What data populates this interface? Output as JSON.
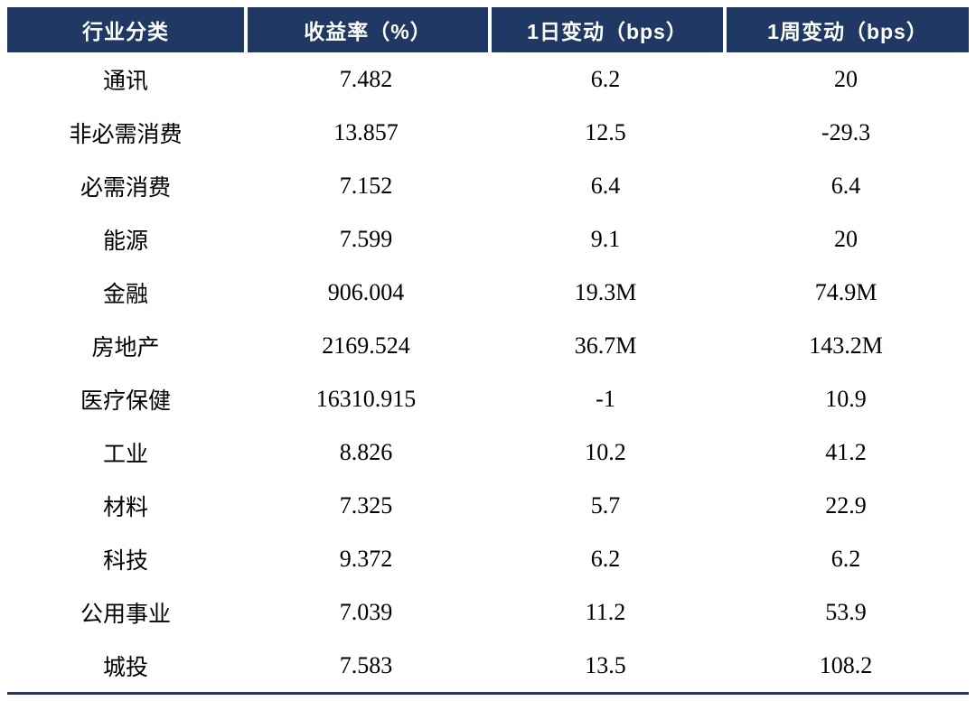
{
  "accent_color": "#1f3864",
  "text_color": "#000000",
  "background_color": "#ffffff",
  "chart_data": {
    "type": "table",
    "columns": [
      "行业分类",
      "收益率（%）",
      "1日变动（bps）",
      "1周变动（bps）"
    ],
    "rows": [
      [
        "通讯",
        "7.482",
        "6.2",
        "20"
      ],
      [
        "非必需消费",
        "13.857",
        "12.5",
        "-29.3"
      ],
      [
        "必需消费",
        "7.152",
        "6.4",
        "6.4"
      ],
      [
        "能源",
        "7.599",
        "9.1",
        "20"
      ],
      [
        "金融",
        "906.004",
        "19.3M",
        "74.9M"
      ],
      [
        "房地产",
        "2169.524",
        "36.7M",
        "143.2M"
      ],
      [
        "医疗保健",
        "16310.915",
        "-1",
        "10.9"
      ],
      [
        "工业",
        "8.826",
        "10.2",
        "41.2"
      ],
      [
        "材料",
        "7.325",
        "5.7",
        "22.9"
      ],
      [
        "科技",
        "9.372",
        "6.2",
        "6.2"
      ],
      [
        "公用事业",
        "7.039",
        "11.2",
        "53.9"
      ],
      [
        "城投",
        "7.583",
        "13.5",
        "108.2"
      ]
    ],
    "legend": null,
    "grid": false,
    "header_background": "#1f3864",
    "header_text_color": "#ffffff"
  }
}
